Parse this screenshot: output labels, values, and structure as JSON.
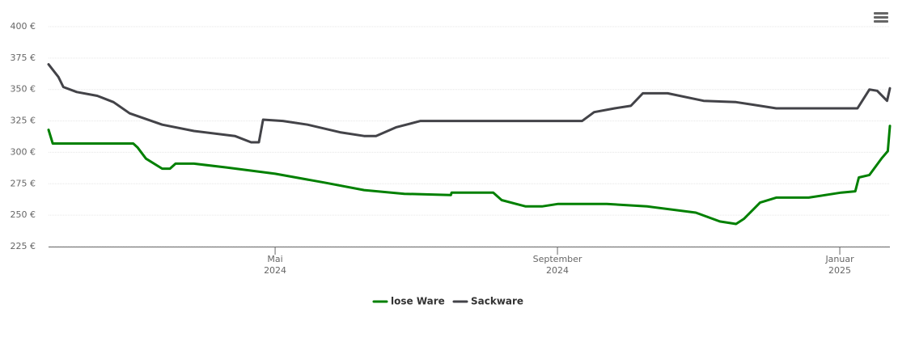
{
  "chart_data": {
    "type": "line",
    "xlim": [
      0.79,
      12.71
    ],
    "xticks": [
      {
        "value": 4,
        "label": "Mai\n2024"
      },
      {
        "value": 8,
        "label": "September\n2024"
      },
      {
        "value": 12,
        "label": "Januar\n2025"
      }
    ],
    "ylim": [
      225,
      400
    ],
    "yticks": [
      {
        "value": 225,
        "label": "225 €"
      },
      {
        "value": 250,
        "label": "250 €"
      },
      {
        "value": 275,
        "label": "275 €"
      },
      {
        "value": 300,
        "label": "300 €"
      },
      {
        "value": 325,
        "label": "325 €"
      },
      {
        "value": 350,
        "label": "350 €"
      },
      {
        "value": 375,
        "label": "375 €"
      },
      {
        "value": 400,
        "label": "400 €"
      }
    ],
    "grid": true,
    "legend": "bottom",
    "series": [
      {
        "name": "lose Ware",
        "color": "#008000",
        "x": [
          0.79,
          0.85,
          1.25,
          1.99,
          2.05,
          2.17,
          2.4,
          2.51,
          2.59,
          2.85,
          3.31,
          4.0,
          4.69,
          5.26,
          5.83,
          6.49,
          6.5,
          7.09,
          7.21,
          7.55,
          7.78,
          8.01,
          8.7,
          9.27,
          9.96,
          10.3,
          10.53,
          10.64,
          10.87,
          11.1,
          11.56,
          12.02,
          12.22,
          12.27,
          12.42,
          12.59,
          12.68,
          12.71
        ],
        "values": [
          318,
          307,
          307,
          307,
          304,
          295,
          287,
          287,
          291,
          291,
          288,
          283,
          276,
          270,
          267,
          266,
          268,
          268,
          262,
          257,
          257,
          259,
          259,
          257,
          252,
          245,
          243,
          247,
          260,
          264,
          264,
          268,
          269,
          280,
          282,
          295,
          301,
          321
        ]
      },
      {
        "name": "Sackware",
        "color": "#434348",
        "x": [
          0.79,
          0.93,
          1.0,
          1.19,
          1.48,
          1.71,
          1.94,
          2.4,
          2.85,
          3.43,
          3.66,
          3.77,
          3.83,
          4.11,
          4.46,
          4.92,
          5.26,
          5.43,
          5.72,
          6.06,
          6.98,
          8.35,
          8.52,
          8.81,
          9.04,
          9.21,
          9.56,
          10.07,
          10.53,
          10.76,
          11.1,
          11.56,
          12.25,
          12.42,
          12.53,
          12.67,
          12.71
        ],
        "values": [
          370,
          360,
          352,
          348,
          345,
          340,
          331,
          322,
          317,
          313,
          308,
          308,
          326,
          325,
          322,
          316,
          313,
          313,
          320,
          325,
          325,
          325,
          332,
          335,
          337,
          347,
          347,
          341,
          340,
          338,
          335,
          335,
          335,
          350,
          349,
          341,
          351
        ]
      }
    ]
  }
}
